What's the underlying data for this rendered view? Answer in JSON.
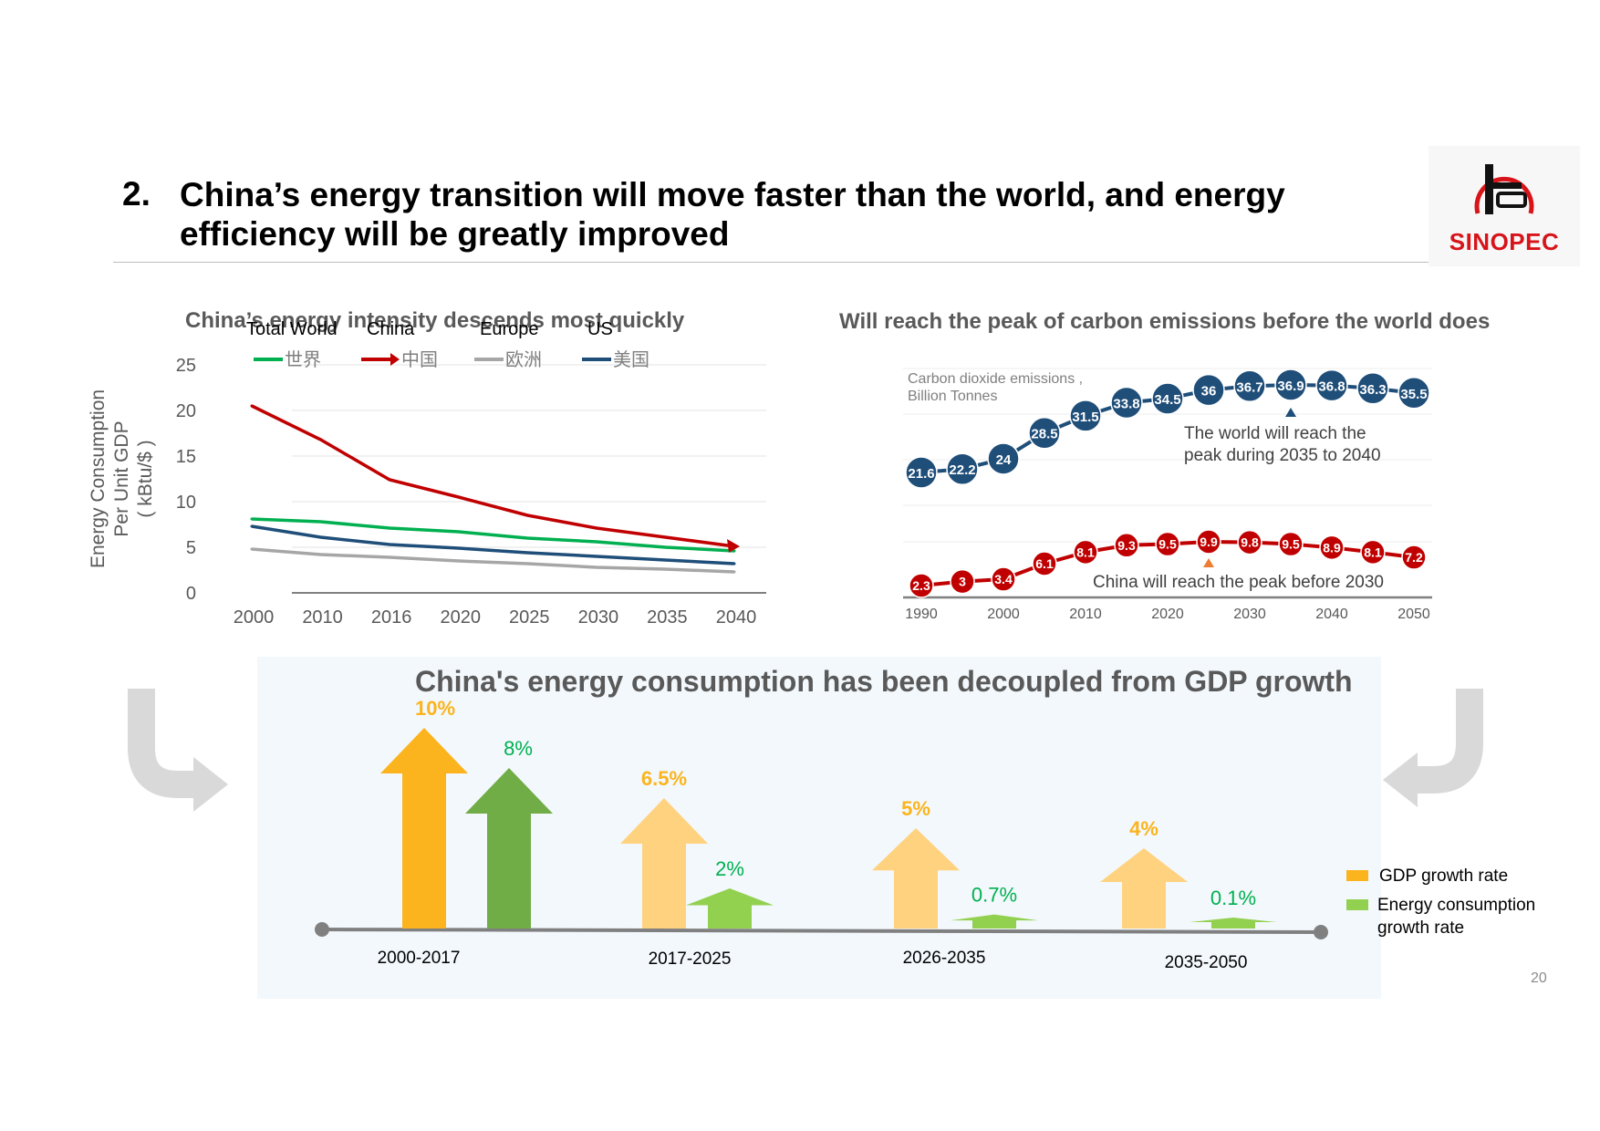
{
  "slide": {
    "number_prefix": "2.",
    "title": "China’s energy transition will move faster than the world, and energy efficiency will be greatly improved",
    "logo_text": "SINOPEC",
    "page_number": "20"
  },
  "colors": {
    "world": "#00b050",
    "china": "#c00000",
    "europe": "#a6a6a6",
    "us": "#1f4e79",
    "emission_world": "#1f4e79",
    "emission_china": "#c00000",
    "gdp_dark": "#fbb41d",
    "gdp_light": "#ffd27f",
    "energy_dark": "#70ad47",
    "energy_light": "#92d050",
    "arrow_gray": "#d9d9d9",
    "text_gray": "#595959"
  },
  "chart_data": [
    {
      "type": "line",
      "title": "China’s energy intensity descends most quickly",
      "ylabel_lines": [
        "Energy Consumption",
        "Per Unit GDP",
        "( kBtu/$ )"
      ],
      "categories": [
        "2000",
        "2010",
        "2016",
        "2020",
        "2025",
        "2030",
        "2035",
        "2040"
      ],
      "ylim": [
        0,
        25
      ],
      "yticks": [
        0,
        5,
        10,
        15,
        20,
        25
      ],
      "grid": true,
      "series": [
        {
          "key": "world",
          "name": "Total World",
          "legend_cn": "世界",
          "values": [
            8.1,
            7.8,
            7.1,
            6.7,
            6.0,
            5.6,
            5.0,
            4.6
          ]
        },
        {
          "key": "china",
          "name": "China",
          "legend_cn": "中国",
          "values": [
            20.5,
            16.8,
            12.4,
            10.5,
            8.5,
            7.1,
            6.1,
            5.1
          ]
        },
        {
          "key": "europe",
          "name": "Europe",
          "legend_cn": "欧洲",
          "values": [
            4.8,
            4.2,
            3.9,
            3.5,
            3.2,
            2.8,
            2.6,
            2.3
          ]
        },
        {
          "key": "us",
          "name": "US",
          "legend_cn": "美国",
          "values": [
            7.3,
            6.1,
            5.3,
            4.9,
            4.4,
            4.0,
            3.6,
            3.2
          ]
        }
      ]
    },
    {
      "type": "line",
      "title": "Will reach the peak of carbon emissions before the world does",
      "unit_label_lines": [
        "Carbon dioxide emissions ,",
        "Billion Tonnes"
      ],
      "x": [
        1990,
        1995,
        2000,
        2005,
        2010,
        2015,
        2020,
        2025,
        2030,
        2035,
        2040,
        2045,
        2050
      ],
      "xticks": [
        "1990",
        "2000",
        "2010",
        "2020",
        "2030",
        "2040",
        "2050"
      ],
      "series": [
        {
          "key": "world",
          "name": "World",
          "values": [
            21.6,
            22.2,
            24,
            28.5,
            31.5,
            33.8,
            34.5,
            36,
            36.7,
            36.9,
            36.8,
            36.3,
            35.5
          ]
        },
        {
          "key": "china",
          "name": "China",
          "values": [
            2.3,
            3,
            3.4,
            6.1,
            8.1,
            9.3,
            9.5,
            9.9,
            9.8,
            9.5,
            8.9,
            8.1,
            7.2
          ]
        }
      ],
      "annotations": {
        "world_peak_lines": [
          "The world will reach the",
          "peak during 2035 to 2040"
        ],
        "china_peak": "China will reach the peak before 2030",
        "world_peak_year": 2035,
        "china_peak_year": 2025
      }
    },
    {
      "type": "bar",
      "title": "China's energy consumption has been decoupled from GDP growth",
      "categories": [
        "2000-2017",
        "2017-2025",
        "2026-2035",
        "2035-2050"
      ],
      "series": [
        {
          "key": "gdp",
          "name": "GDP growth rate",
          "values": [
            10,
            6.5,
            5,
            4
          ],
          "labels": [
            "10%",
            "6.5%",
            "5%",
            "4%"
          ]
        },
        {
          "key": "energy",
          "name_lines": [
            "Energy consumption",
            "growth rate"
          ],
          "values": [
            8,
            2,
            0.7,
            0.1
          ],
          "labels": [
            "8%",
            "2%",
            "0.7%",
            "0.1%"
          ]
        }
      ]
    }
  ]
}
